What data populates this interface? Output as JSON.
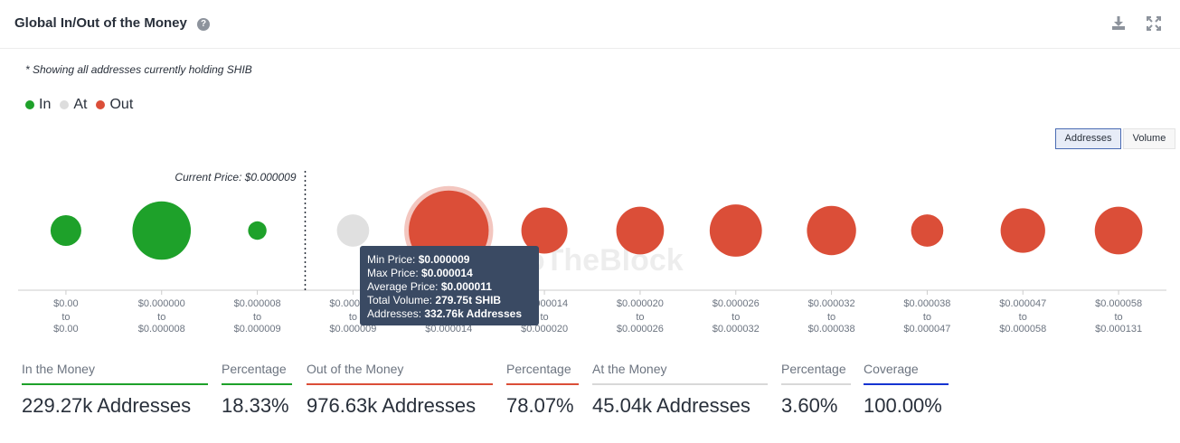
{
  "header": {
    "title": "Global In/Out of the Money",
    "help_icon": "question-circle-icon",
    "download_icon": "download-icon",
    "expand_icon": "expand-icon"
  },
  "note": "* Showing all addresses currently holding SHIB",
  "legend": [
    {
      "label": "In",
      "color": "#1ea12a"
    },
    {
      "label": "At",
      "color": "#dddddd"
    },
    {
      "label": "Out",
      "color": "#db4e38"
    }
  ],
  "toggle": {
    "addresses": "Addresses",
    "volume": "Volume"
  },
  "chart_data": {
    "type": "scatter",
    "current_price_label": "Current Price: $0.000009",
    "watermark": "IntoTheBlock",
    "bubbles": [
      {
        "from": "$0.00",
        "to": "$0.00",
        "status": "in",
        "size": 1.0
      },
      {
        "from": "$0.000000",
        "to": "$0.000008",
        "status": "in",
        "size": 1.9
      },
      {
        "from": "$0.000008",
        "to": "$0.000009",
        "status": "in",
        "size": 0.6
      },
      {
        "from": "$0.000009",
        "to": "$0.000009",
        "status": "at",
        "size": 1.05
      },
      {
        "from": "$0.000009",
        "to": "$0.000014",
        "status": "out",
        "size": 2.6,
        "highlighted": true
      },
      {
        "from": "$0.000014",
        "to": "$0.000020",
        "status": "out",
        "size": 1.5
      },
      {
        "from": "$0.000020",
        "to": "$0.000026",
        "status": "out",
        "size": 1.55
      },
      {
        "from": "$0.000026",
        "to": "$0.000032",
        "status": "out",
        "size": 1.7
      },
      {
        "from": "$0.000032",
        "to": "$0.000038",
        "status": "out",
        "size": 1.6
      },
      {
        "from": "$0.000038",
        "to": "$0.000047",
        "status": "out",
        "size": 1.05
      },
      {
        "from": "$0.000047",
        "to": "$0.000058",
        "status": "out",
        "size": 1.45
      },
      {
        "from": "$0.000058",
        "to": "$0.000131",
        "status": "out",
        "size": 1.55
      }
    ],
    "tooltip": {
      "min_price_label": "Min Price:",
      "min_price": "$0.000009",
      "max_price_label": "Max Price:",
      "max_price": "$0.000014",
      "avg_price_label": "Average Price:",
      "avg_price": "$0.000011",
      "total_volume_label": "Total Volume:",
      "total_volume": "279.75t SHIB",
      "addresses_label": "Addresses:",
      "addresses": "332.76k Addresses"
    },
    "colors": {
      "in": "#1ea12a",
      "at": "#e0e0e0",
      "out": "#db4e38",
      "out_halo": "#f3c6bf"
    }
  },
  "stats": [
    {
      "label": "In the Money",
      "value": "229.27k Addresses",
      "color": "#1ea12a"
    },
    {
      "label": "Percentage",
      "value": "18.33%",
      "color": "#1ea12a"
    },
    {
      "label": "Out of the Money",
      "value": "976.63k Addresses",
      "color": "#db4e38"
    },
    {
      "label": "Percentage",
      "value": "78.07%",
      "color": "#db4e38"
    },
    {
      "label": "At the Money",
      "value": "45.04k Addresses",
      "color": "#d8d8d8"
    },
    {
      "label": "Percentage",
      "value": "3.60%",
      "color": "#d8d8d8"
    },
    {
      "label": "Coverage",
      "value": "100.00%",
      "color": "#1534d1"
    }
  ]
}
